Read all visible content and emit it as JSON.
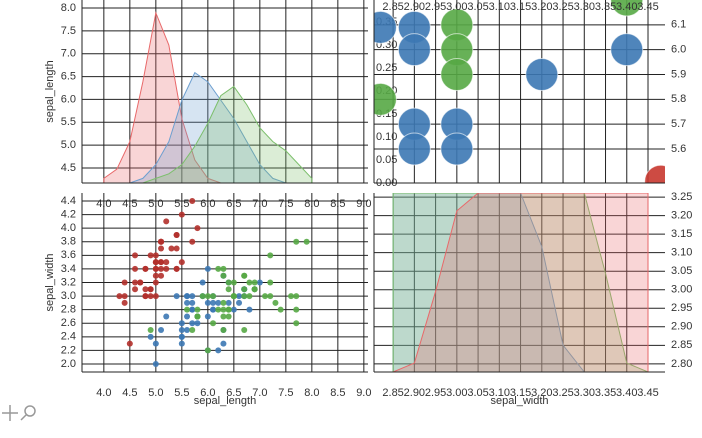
{
  "chart_data": [
    {
      "type": "area",
      "ylabel": "sepal_length",
      "x": [
        4.0,
        4.25,
        4.5,
        4.75,
        5.0,
        5.25,
        5.5,
        5.75,
        6.0,
        6.25,
        6.5,
        6.75,
        7.0,
        7.25,
        7.5,
        7.75,
        8.0
      ],
      "series": [
        {
          "color": "#e8696a",
          "axis": "y2",
          "values": [
            0.01,
            0.03,
            0.09,
            0.22,
            0.37,
            0.3,
            0.14,
            0.05,
            0.01,
            0,
            0,
            0,
            0,
            0,
            0,
            0,
            0
          ]
        },
        {
          "color": "#6d9fd0",
          "axis": "y2",
          "values": [
            0,
            0,
            0,
            0.01,
            0.04,
            0.09,
            0.18,
            0.24,
            0.22,
            0.18,
            0.14,
            0.09,
            0.04,
            0.01,
            0,
            0,
            0
          ]
        },
        {
          "color": "#7cbf6c",
          "axis": "y2",
          "values": [
            0,
            0,
            0,
            0,
            0.01,
            0.02,
            0.04,
            0.08,
            0.13,
            0.19,
            0.21,
            0.17,
            0.12,
            0.09,
            0.07,
            0.04,
            0.01
          ]
        }
      ],
      "xlim": [
        3.58,
        9.08
      ],
      "xticks": [
        {
          "value": 4,
          "label": "4.0"
        },
        4.5,
        {
          "value": 5,
          "label": "5.0"
        },
        5.5,
        {
          "value": 6,
          "label": "6.0"
        },
        6.5,
        {
          "value": 7,
          "label": "7.0"
        },
        7.5,
        {
          "value": 8,
          "label": "8.0"
        },
        8.5,
        {
          "value": 9,
          "label": "9.0"
        }
      ],
      "ylim": [
        4.172,
        8.175
      ],
      "yticks": [
        4.5,
        {
          "value": 5,
          "label": "5.0"
        },
        5.5,
        {
          "value": 6,
          "label": "6.0"
        },
        6.5,
        {
          "value": 7,
          "label": "7.0"
        },
        7.5,
        {
          "value": 8,
          "label": "8.0"
        }
      ],
      "y2lim": [
        0,
        0.398
      ],
      "y2ticks": [
        {
          "value": 0,
          "label": "0.00"
        },
        0.05,
        {
          "value": 0.1,
          "label": "0.10"
        },
        0.15,
        {
          "value": 0.2,
          "label": "0.20"
        },
        0.25,
        {
          "value": 0.3,
          "label": "0.30"
        },
        0.35
      ],
      "grid": true
    },
    {
      "type": "scatter",
      "xlabel": "sepal_length",
      "ylabel": "sepal_width",
      "series": [
        {
          "color": "#b3302b",
          "x": [
            5.1,
            4.9,
            4.7,
            4.6,
            5.0,
            5.4,
            4.6,
            5.0,
            4.4,
            4.9,
            5.4,
            4.8,
            4.8,
            4.3,
            5.8,
            5.7,
            5.4,
            5.1,
            5.7,
            5.1,
            5.4,
            5.1,
            4.6,
            5.1,
            4.8,
            5.0,
            5.0,
            5.2,
            5.2,
            4.7,
            4.8,
            5.4,
            5.2,
            5.5,
            4.9,
            5.0,
            5.5,
            4.9,
            4.4,
            5.1,
            5.0,
            4.5,
            4.4,
            5.0,
            5.1,
            4.8,
            5.1,
            4.6,
            5.3,
            5.0
          ],
          "values": [
            3.5,
            3.0,
            3.2,
            3.1,
            3.6,
            3.9,
            3.4,
            3.4,
            2.9,
            3.1,
            3.7,
            3.4,
            3.0,
            3.0,
            4.0,
            4.4,
            3.9,
            3.5,
            3.8,
            3.8,
            3.4,
            3.7,
            3.6,
            3.3,
            3.4,
            3.0,
            3.4,
            3.5,
            3.4,
            3.2,
            3.1,
            3.4,
            4.1,
            4.2,
            3.1,
            3.2,
            3.5,
            3.6,
            3.0,
            3.4,
            3.5,
            2.3,
            3.2,
            3.5,
            3.8,
            3.0,
            3.8,
            3.2,
            3.7,
            3.3
          ]
        },
        {
          "color": "#3c78b4",
          "x": [
            7.0,
            6.4,
            6.9,
            5.5,
            6.5,
            5.7,
            6.3,
            4.9,
            6.6,
            5.2,
            5.0,
            5.9,
            6.0,
            6.1,
            5.6,
            6.7,
            5.6,
            5.8,
            6.2,
            5.6,
            5.9,
            6.1,
            6.3,
            6.1,
            6.4,
            6.6,
            6.8,
            6.7,
            6.0,
            5.7,
            5.5,
            5.5,
            5.8,
            6.0,
            5.4,
            6.0,
            6.7,
            6.3,
            5.6,
            5.5,
            5.5,
            6.1,
            5.8,
            5.0,
            5.6,
            5.7,
            5.7,
            6.2,
            5.1,
            5.7
          ],
          "values": [
            3.2,
            3.2,
            3.1,
            2.3,
            2.8,
            2.8,
            3.3,
            2.4,
            2.9,
            2.7,
            2.0,
            3.0,
            2.2,
            2.9,
            2.9,
            3.1,
            3.0,
            2.7,
            2.2,
            2.5,
            3.2,
            2.8,
            2.5,
            2.8,
            2.9,
            3.0,
            2.8,
            3.0,
            2.9,
            2.6,
            2.4,
            2.4,
            2.7,
            2.7,
            3.0,
            3.4,
            3.1,
            2.3,
            3.0,
            2.5,
            2.6,
            3.0,
            2.6,
            2.3,
            2.7,
            3.0,
            2.9,
            2.9,
            2.5,
            2.8
          ]
        },
        {
          "color": "#57a845",
          "x": [
            6.3,
            5.8,
            7.1,
            6.3,
            6.5,
            7.6,
            4.9,
            7.3,
            6.7,
            7.2,
            6.5,
            6.4,
            6.8,
            5.7,
            5.8,
            6.4,
            6.5,
            7.7,
            7.7,
            6.0,
            6.9,
            5.6,
            7.7,
            6.3,
            6.7,
            7.2,
            6.2,
            6.1,
            6.4,
            7.2,
            7.4,
            7.9,
            6.4,
            6.3,
            6.1,
            7.7,
            6.3,
            6.4,
            6.0,
            6.9,
            6.7,
            6.9,
            5.8,
            6.8,
            6.7,
            6.7,
            6.3,
            6.5,
            6.2,
            5.9
          ],
          "values": [
            3.3,
            2.7,
            3.0,
            2.9,
            3.0,
            3.0,
            2.5,
            2.9,
            2.5,
            3.6,
            3.2,
            2.7,
            3.0,
            2.5,
            2.8,
            3.2,
            3.0,
            3.8,
            2.6,
            2.2,
            3.2,
            2.8,
            2.8,
            2.7,
            3.3,
            3.2,
            2.8,
            3.0,
            2.8,
            3.0,
            2.8,
            3.8,
            2.8,
            2.8,
            2.6,
            3.0,
            3.4,
            3.1,
            3.0,
            3.1,
            3.1,
            3.1,
            2.7,
            3.2,
            3.3,
            3.0,
            2.5,
            3.0,
            3.4,
            3.0
          ]
        }
      ],
      "xlim": [
        3.58,
        9.08
      ],
      "xticks": [
        {
          "value": 4,
          "label": "4.0"
        },
        4.5,
        {
          "value": 5,
          "label": "5.0"
        },
        5.5,
        {
          "value": 6,
          "label": "6.0"
        },
        6.5,
        {
          "value": 7,
          "label": "7.0"
        },
        7.5,
        {
          "value": 8,
          "label": "8.0"
        },
        8.5,
        {
          "value": 9,
          "label": "9.0"
        }
      ],
      "ylim": [
        1.882,
        4.518
      ],
      "yticks": [
        {
          "value": 2,
          "label": "2.0"
        },
        2.2,
        2.4,
        2.6,
        2.8,
        {
          "value": 3,
          "label": "3.0"
        },
        3.2,
        3.4,
        3.6,
        3.8,
        {
          "value": 4,
          "label": "4.0"
        },
        4.2,
        4.4
      ],
      "grid": true
    },
    {
      "type": "scatter",
      "series": [
        {
          "color": "#3c78b4",
          "x": [
            2.82,
            2.9,
            2.9,
            2.9,
            2.9,
            3.0,
            3.0,
            3.2,
            3.4
          ],
          "values": [
            6.09,
            6.09,
            6.0,
            5.7,
            5.6,
            5.7,
            5.6,
            5.9,
            6.0
          ]
        },
        {
          "color": "#57a845",
          "x": [
            3.0,
            3.0,
            3.0,
            2.82,
            3.4
          ],
          "values": [
            6.1,
            6.0,
            5.9,
            5.8,
            6.2
          ]
        },
        {
          "color": "#c8372f",
          "x": [
            3.48
          ],
          "values": [
            5.47
          ]
        }
      ],
      "xlim": [
        2.805,
        3.49
      ],
      "xticks": [
        2.85,
        {
          "value": 2.9,
          "label": "2.90"
        },
        2.95,
        {
          "value": 3,
          "label": "3.00"
        },
        3.05,
        {
          "value": 3.1,
          "label": "3.10"
        },
        3.15,
        {
          "value": 3.2,
          "label": "3.20"
        },
        3.25,
        {
          "value": 3.3,
          "label": "3.30"
        },
        3.35,
        {
          "value": 3.4,
          "label": "3.40"
        },
        3.45
      ],
      "ylim": [
        5.463,
        6.2
      ],
      "yticks": [
        5.6,
        5.7,
        5.8,
        5.9,
        {
          "value": 6,
          "label": "6.0"
        },
        6.1
      ],
      "grid": true
    },
    {
      "type": "area",
      "xlabel": "sepal_width",
      "x": [
        2.85,
        2.9,
        2.95,
        3.0,
        3.05,
        3.1,
        3.15,
        3.2,
        3.25,
        3.3,
        3.35,
        3.4,
        3.45
      ],
      "series": [
        {
          "color": "#6d9fd0",
          "values": [
            1,
            1,
            1,
            1,
            1,
            1,
            1,
            0.7,
            0.15,
            0,
            0,
            0,
            0
          ]
        },
        {
          "color": "#7cbf6c",
          "values": [
            1,
            1,
            1,
            1,
            1,
            1,
            1,
            1,
            1,
            1,
            0.55,
            0.05,
            0
          ]
        },
        {
          "color": "#e8696a",
          "values": [
            0,
            0.05,
            0.45,
            0.9,
            1,
            1,
            1,
            1,
            1,
            1,
            1,
            1,
            1
          ]
        }
      ],
      "xlim": [
        2.805,
        3.49
      ],
      "xticks": [
        2.85,
        {
          "value": 2.9,
          "label": "2.90"
        },
        2.95,
        {
          "value": 3,
          "label": "3.00"
        },
        3.05,
        {
          "value": 3.1,
          "label": "3.10"
        },
        3.15,
        {
          "value": 3.2,
          "label": "3.20"
        },
        3.25,
        {
          "value": 3.3,
          "label": "3.30"
        },
        3.35,
        {
          "value": 3.4,
          "label": "3.40"
        },
        3.45
      ],
      "ylim": [
        0,
        1
      ],
      "y2lim": [
        2.778,
        3.261
      ],
      "y2ticks": [
        {
          "value": 2.8,
          "label": "2.80"
        },
        2.85,
        {
          "value": 2.9,
          "label": "2.90"
        },
        2.95,
        {
          "value": 3,
          "label": "3.00"
        },
        3.05,
        {
          "value": 3.1,
          "label": "3.10"
        },
        3.15,
        {
          "value": 3.2,
          "label": "3.20"
        },
        3.25
      ],
      "grid": true
    }
  ]
}
